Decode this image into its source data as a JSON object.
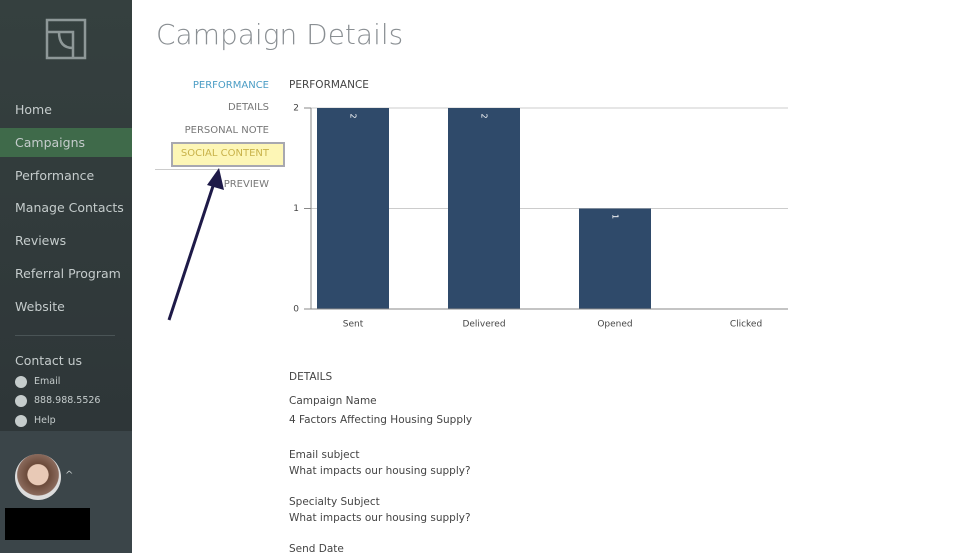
{
  "sidebar": {
    "nav": [
      "Home",
      "Campaigns",
      "Performance",
      "Manage Contacts",
      "Reviews",
      "Referral Program",
      "Website"
    ],
    "contact": {
      "title": "Contact us",
      "items": [
        "Email",
        "888.988.5526",
        "Help"
      ]
    }
  },
  "header": {
    "title": "Campaign Details"
  },
  "subnav": [
    "PERFORMANCE",
    "DETAILS",
    "PERSONAL NOTE",
    "SOCIAL CONTENT",
    "PREVIEW"
  ],
  "chart_data": {
    "type": "bar",
    "title": "PERFORMANCE",
    "categories": [
      "Sent",
      "Delivered",
      "Opened",
      "Clicked"
    ],
    "values": [
      2,
      2,
      1,
      0
    ],
    "color": "#2f4a6a",
    "ylim": [
      0,
      2
    ],
    "yticks": [
      0,
      1,
      2
    ],
    "grid": true
  },
  "details": {
    "title": "DETAILS",
    "fields": [
      {
        "label": "Campaign Name",
        "value": "4 Factors Affecting Housing Supply"
      },
      {
        "label": "Email subject",
        "value": "What impacts our housing supply?"
      },
      {
        "label": "Specialty Subject",
        "value": "What impacts our housing supply?"
      },
      {
        "label": "Send Date"
      }
    ]
  }
}
